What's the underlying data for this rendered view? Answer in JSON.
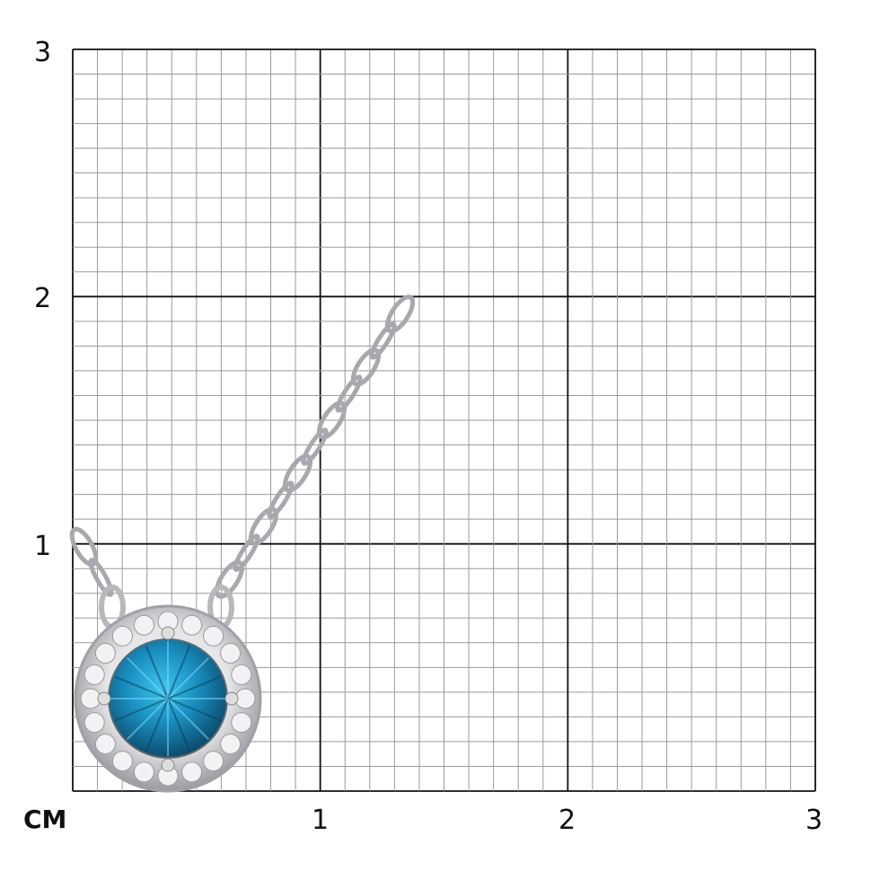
{
  "scale": {
    "unit_label": "CM",
    "x_ticks": [
      "1",
      "2",
      "3"
    ],
    "y_ticks": [
      "3",
      "2",
      "1"
    ],
    "range_cm": [
      0,
      3
    ],
    "minor_divisions_per_cm": 10
  },
  "product": {
    "type": "halo pendant necklace",
    "center_stone_color": "#1a8fc0",
    "metal_color": "#c8c8cc"
  },
  "colors": {
    "major_grid": "#111111",
    "minor_grid": "#9a9a9a"
  }
}
